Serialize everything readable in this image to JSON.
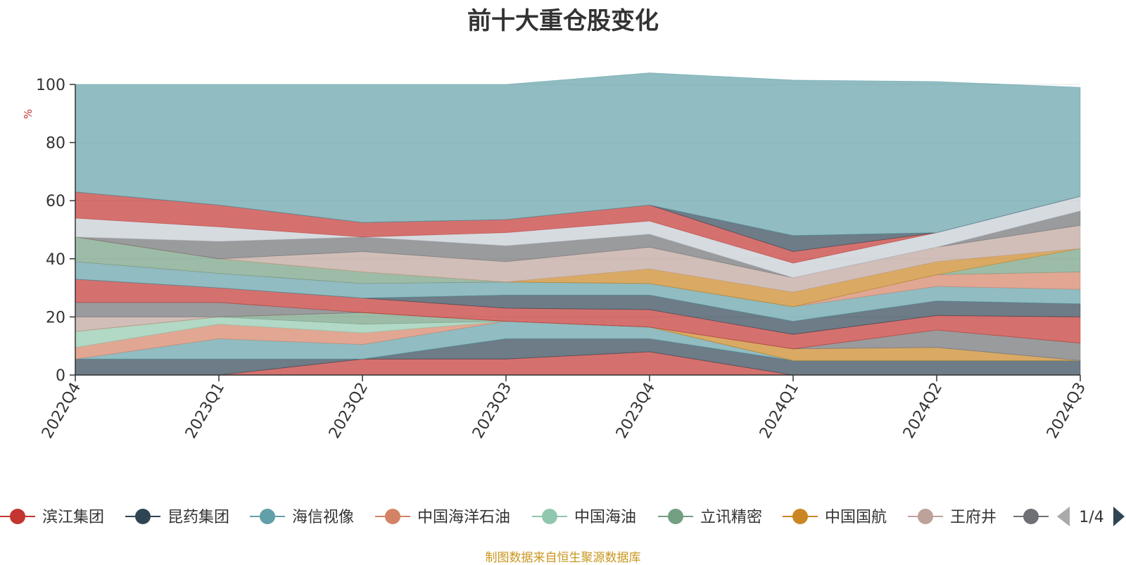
{
  "chart_data": {
    "type": "area",
    "stacked": true,
    "title": "前十大重仓股变化",
    "ylabel": "%",
    "ylim": [
      0,
      100
    ],
    "yticks": [
      0,
      20,
      40,
      60,
      80,
      100
    ],
    "categories": [
      "2022Q4",
      "2023Q1",
      "2023Q2",
      "2023Q3",
      "2023Q4",
      "2024Q1",
      "2024Q2",
      "2024Q3"
    ],
    "grid": true,
    "series": [
      {
        "name": "滨江集团",
        "color": "#c23531",
        "values": [
          0,
          0,
          5.5,
          5.5,
          8,
          0,
          0,
          0
        ]
      },
      {
        "name": "昆药集团",
        "color": "#2f4554",
        "values": [
          5.5,
          5.5,
          0,
          7,
          4.5,
          5,
          5,
          5
        ]
      },
      {
        "name": "海信视像",
        "color": "#61a0a8",
        "values": [
          0,
          7,
          5,
          6,
          4,
          0,
          0,
          0
        ]
      },
      {
        "name": "中国海洋石油",
        "color": "#d48265",
        "values": [
          4,
          5,
          4,
          0,
          0,
          0,
          0,
          0
        ]
      },
      {
        "name": "中国海油",
        "color": "#91c7ae",
        "values": [
          5.5,
          2.5,
          3,
          0,
          0,
          0,
          0,
          0
        ]
      },
      {
        "name": "立讯精密",
        "color": "#749f83",
        "values": [
          0,
          0,
          4,
          0,
          0,
          0,
          0,
          0
        ]
      },
      {
        "name": "中国国航",
        "color": "#ca8622",
        "values": [
          0,
          0,
          0,
          0,
          0,
          4,
          4.5,
          0
        ]
      },
      {
        "name": "王府井",
        "color": "#bda29a",
        "values": [
          5,
          0,
          0,
          0,
          0,
          0,
          0,
          0
        ]
      },
      {
        "name": "",
        "color": "#6e7074",
        "values": [
          5,
          5,
          0,
          0,
          0,
          0,
          6,
          6
        ]
      },
      {
        "name": "",
        "color": "#c23531",
        "values": [
          8,
          5,
          5,
          4.5,
          6,
          5,
          5,
          9
        ]
      },
      {
        "name": "",
        "color": "#2f4554",
        "values": [
          0,
          0,
          0,
          4.5,
          5,
          4.5,
          5,
          4.5
        ]
      },
      {
        "name": "",
        "color": "#61a0a8",
        "values": [
          6,
          5,
          5,
          4.5,
          4,
          5,
          5,
          5
        ]
      },
      {
        "name": "",
        "color": "#d48265",
        "values": [
          0,
          0,
          0,
          0,
          0,
          0,
          4,
          6
        ]
      },
      {
        "name": "",
        "color": "#749f83",
        "values": [
          8.5,
          5,
          4,
          0,
          0,
          0,
          0,
          8
        ]
      },
      {
        "name": "",
        "color": "#ca8622",
        "values": [
          0,
          0,
          0,
          0,
          5,
          5,
          4.5,
          0
        ]
      },
      {
        "name": "",
        "color": "#bda29a",
        "values": [
          0,
          0,
          7,
          7,
          7.5,
          5,
          5,
          8
        ]
      },
      {
        "name": "",
        "color": "#6e7074",
        "values": [
          0,
          6,
          5,
          5.5,
          4.5,
          0,
          0,
          5
        ]
      },
      {
        "name": "",
        "color": "#c4ccd3",
        "values": [
          6.5,
          5,
          0,
          4.5,
          4.5,
          5,
          5,
          5
        ]
      },
      {
        "name": "",
        "color": "#c23531",
        "values": [
          9,
          7.5,
          5,
          4.5,
          5.5,
          4,
          0,
          0
        ]
      },
      {
        "name": "",
        "color": "#2f4554",
        "values": [
          0,
          0,
          0,
          0,
          0,
          5.5,
          0,
          0
        ]
      },
      {
        "name": "",
        "color": "#61a0a8",
        "values": [
          37,
          41.5,
          47.5,
          46.5,
          45.5,
          53.5,
          52,
          37.5
        ]
      }
    ],
    "legend": {
      "position": "bottom",
      "items": [
        "滨江集团",
        "昆药集团",
        "海信视像",
        "中国海洋石油",
        "中国海油",
        "立讯精密",
        "中国国航",
        "王府井",
        ""
      ],
      "page": "1/4"
    },
    "source_note": "制图数据来自恒生聚源数据库"
  }
}
